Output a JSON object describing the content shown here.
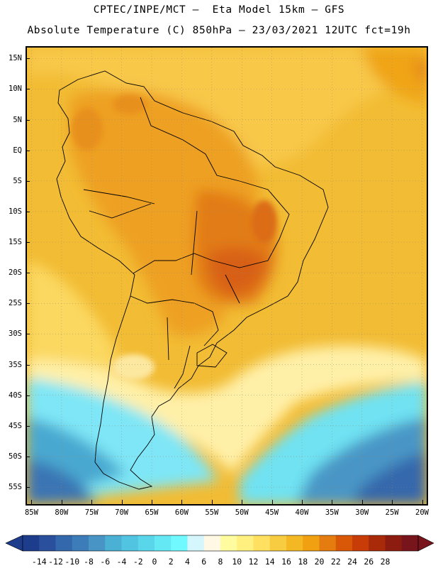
{
  "title": {
    "line1": "CPTEC/INPE/MCT —  Eta Model 15km — GFS",
    "line2": "Absolute Temperature (C) 850hPa — 23/03/2021 12UTC fct=19h"
  },
  "map": {
    "lon_range": [
      -86,
      -19
    ],
    "lat_range": [
      -58,
      17
    ],
    "lat_labels": [
      "15N",
      "10N",
      "5N",
      "EQ",
      "5S",
      "10S",
      "15S",
      "20S",
      "25S",
      "30S",
      "35S",
      "40S",
      "45S",
      "50S",
      "55S"
    ],
    "lat_values": [
      15,
      10,
      5,
      0,
      -5,
      -10,
      -15,
      -20,
      -25,
      -30,
      -35,
      -40,
      -45,
      -50,
      -55
    ],
    "lon_labels": [
      "85W",
      "80W",
      "75W",
      "70W",
      "65W",
      "60W",
      "55W",
      "50W",
      "45W",
      "40W",
      "35W",
      "30W",
      "25W",
      "20W"
    ],
    "lon_values": [
      -85,
      -80,
      -75,
      -70,
      -65,
      -60,
      -55,
      -50,
      -45,
      -40,
      -35,
      -30,
      -25,
      -20
    ]
  },
  "colorbar": {
    "labels": [
      "-14",
      "-12",
      "-10",
      "-8",
      "-6",
      "-4",
      "-2",
      "0",
      "2",
      "4",
      "6",
      "8",
      "10",
      "12",
      "14",
      "16",
      "18",
      "20",
      "22",
      "24",
      "26",
      "28"
    ],
    "colors": [
      "#1e3c8c",
      "#2a4f9c",
      "#3468ac",
      "#3c7cb8",
      "#4894c4",
      "#4ab0d4",
      "#50c4e0",
      "#5ad6ea",
      "#64e8f4",
      "#70faff",
      "#d4f6fc",
      "#fff8e4",
      "#fffca0",
      "#fff080",
      "#ffe060",
      "#f8cc40",
      "#f4b824",
      "#f0a010",
      "#e47c10",
      "#d85808",
      "#c83c08",
      "#a82a08",
      "#8c1c10",
      "#78141c"
    ],
    "low_color": "#1e3c8c",
    "high_color": "#78141c"
  },
  "background_color": "#f0b830"
}
